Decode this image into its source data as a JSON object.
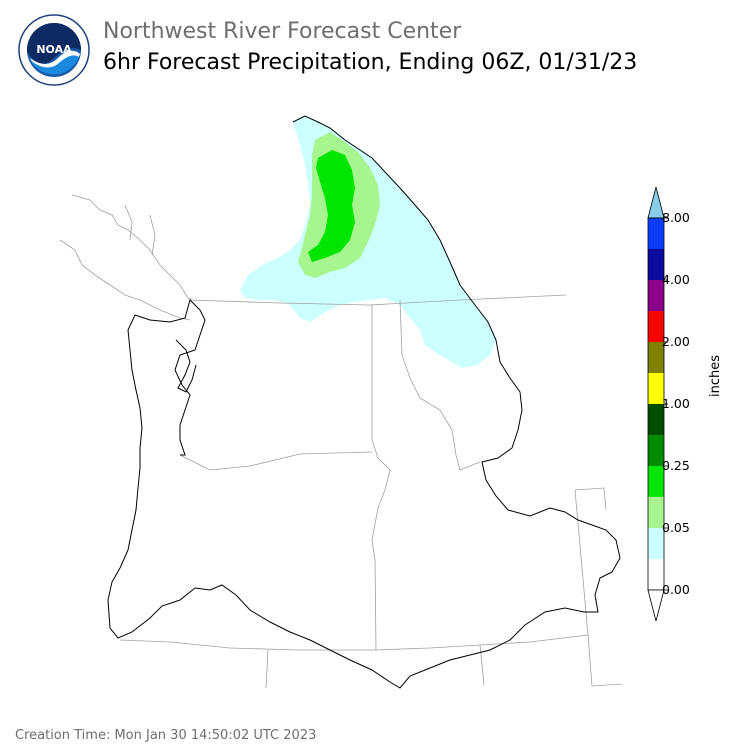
{
  "header": {
    "org_name": "Northwest River Forecast Center",
    "product_title": "6hr Forecast Precipitation, Ending 06Z, 01/31/23",
    "logo_text": "NOAA",
    "logo_ring_text": "NATIONAL OCEANIC AND ATMOSPHERIC ADMINISTRATION · U.S. DEPARTMENT OF COMMERCE"
  },
  "colorbar": {
    "units_label": "inches",
    "tick_labels": [
      "0.00",
      "0.05",
      "0.25",
      "1.00",
      "2.00",
      "4.00",
      "8.00"
    ],
    "bins": [
      {
        "color": "#ffffff"
      },
      {
        "color": "#ccffff"
      },
      {
        "color": "#a6f58f"
      },
      {
        "color": "#00e600"
      },
      {
        "color": "#008c00"
      },
      {
        "color": "#004d00"
      },
      {
        "color": "#ffff00"
      },
      {
        "color": "#7f7f00"
      },
      {
        "color": "#ff0000"
      },
      {
        "color": "#8b008b"
      },
      {
        "color": "#0a0aa0"
      },
      {
        "color": "#0a3cff"
      }
    ],
    "over_color": "#87ceeb",
    "under_color": "#ffffff"
  },
  "footer": {
    "creation_time": "Creation Time: Mon Jan 30 14:50:02 UTC 2023"
  }
}
